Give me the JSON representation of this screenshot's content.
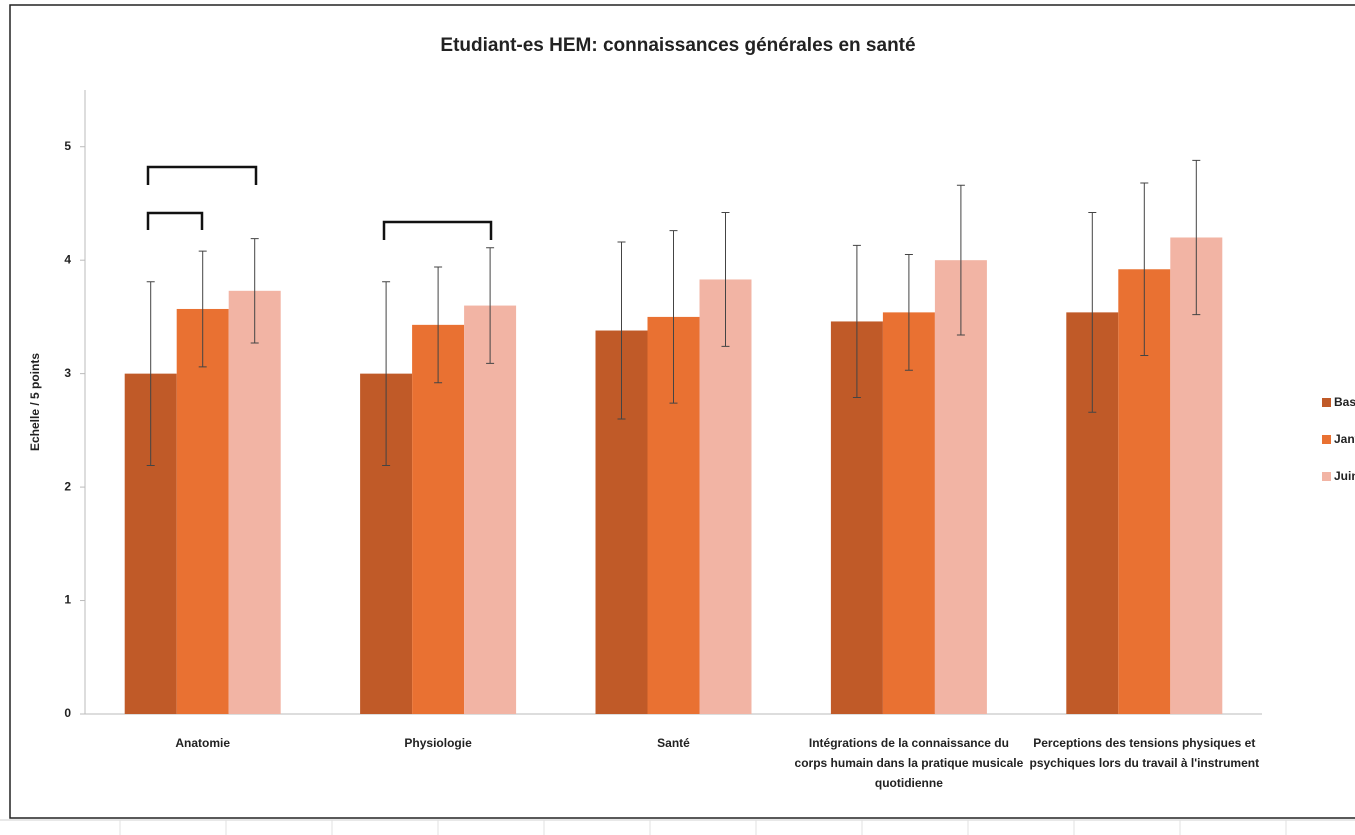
{
  "chart_data": {
    "type": "bar",
    "title": "Etudiant-es HEM: connaissances générales en santé",
    "y_label": "Echelle / 5 points",
    "categories": [
      "Anatomie",
      "Physiologie",
      "Santé",
      "Intégrations de la connaissance du corps humain dans la pratique musicale quotidienne",
      "Perceptions des tensions physiques et psychiques lors du travail à l'instrument"
    ],
    "series": [
      {
        "name": "Baseline",
        "color": "#c05a28",
        "values": [
          3.0,
          3.0,
          3.38,
          3.46,
          3.54
        ],
        "errors": [
          0.81,
          0.81,
          0.78,
          0.67,
          0.88
        ]
      },
      {
        "name": "Janvier",
        "color": "#e97132",
        "values": [
          3.57,
          3.43,
          3.5,
          3.54,
          3.92
        ],
        "errors": [
          0.51,
          0.51,
          0.76,
          0.51,
          0.76
        ]
      },
      {
        "name": "Juin",
        "color": "#f2b4a4",
        "values": [
          3.73,
          3.6,
          3.83,
          4.0,
          4.2
        ],
        "errors": [
          0.46,
          0.51,
          0.59,
          0.66,
          0.68
        ]
      }
    ],
    "ylim": [
      0,
      5.5
    ],
    "yticks": [
      0,
      1,
      2,
      3,
      4,
      5
    ],
    "grid": false,
    "legend": "right"
  }
}
